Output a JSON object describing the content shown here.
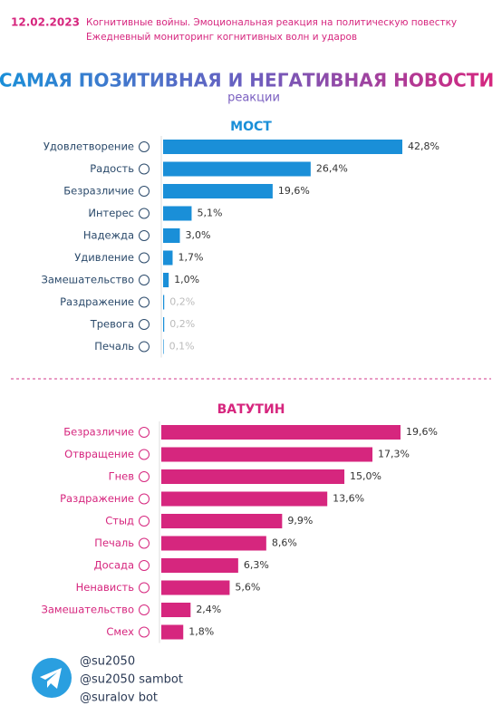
{
  "header": {
    "date": "12.02.2023",
    "line1": "Когнитивные войны. Эмоциональная реакция на политическую повестку",
    "line2": "Ежедневный мониторинг когнитивных волн и ударов"
  },
  "heading": {
    "title": "САМАЯ ПОЗИТИВНАЯ И НЕГАТИВНАЯ НОВОСТИ",
    "subtitle": "реакции"
  },
  "chart_data": [
    {
      "type": "bar",
      "orientation": "horizontal",
      "title": "МОСТ",
      "color": "#1a8fd8",
      "categories": [
        "Удовлетворение",
        "Радость",
        "Безразличие",
        "Интерес",
        "Надежда",
        "Удивление",
        "Замешательство",
        "Раздражение",
        "Тревога",
        "Печаль"
      ],
      "values": [
        42.8,
        26.4,
        19.6,
        5.1,
        3.0,
        1.7,
        1.0,
        0.2,
        0.2,
        0.1
      ],
      "value_labels": [
        "42,8%",
        "26,4%",
        "19,6%",
        "5,1%",
        "3,0%",
        "1,7%",
        "1,0%",
        "0,2%",
        "0,2%",
        "0,1%"
      ]
    },
    {
      "type": "bar",
      "orientation": "horizontal",
      "title": "ВАТУТИН",
      "color": "#d6267e",
      "categories": [
        "Безразличие",
        "Отвращение",
        "Гнев",
        "Раздражение",
        "Стыд",
        "Печаль",
        "Досада",
        "Ненависть",
        "Замешательство",
        "Смех"
      ],
      "values": [
        19.6,
        17.3,
        15.0,
        13.6,
        9.9,
        8.6,
        6.3,
        5.6,
        2.4,
        1.8
      ],
      "value_labels": [
        "19,6%",
        "17,3%",
        "15,0%",
        "13,6%",
        "9,9%",
        "8,6%",
        "6,3%",
        "5,6%",
        "2,4%",
        "1,8%"
      ]
    }
  ],
  "footer": {
    "handles": [
      "@su2050",
      "@su2050 sambot",
      "@suralov bot"
    ]
  }
}
